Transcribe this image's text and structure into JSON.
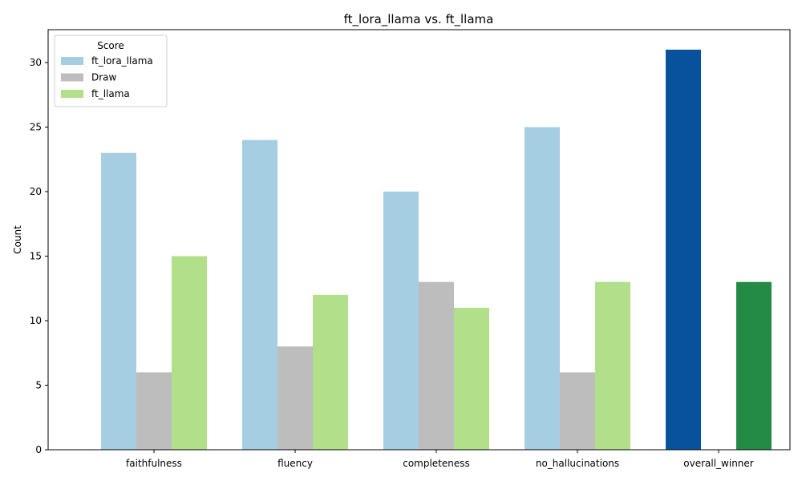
{
  "chart_data": {
    "type": "bar",
    "title": "ft_lora_llama vs. ft_llama",
    "xlabel": "",
    "ylabel": "Count",
    "ylim": [
      0,
      32.55
    ],
    "yticks": [
      0,
      5,
      10,
      15,
      20,
      25,
      30
    ],
    "grid": false,
    "categories": [
      "faithfulness",
      "fluency",
      "completeness",
      "no_hallucinations",
      "overall_winner"
    ],
    "legend": {
      "title": "Score",
      "placement": "top-left"
    },
    "series": [
      {
        "name": "ft_lora_llama",
        "color": "#a6cee3",
        "values": [
          23,
          24,
          20,
          25,
          31
        ],
        "overrides": {
          "4": "#08519c"
        }
      },
      {
        "name": "Draw",
        "color": "#bdbdbd",
        "values": [
          6,
          8,
          13,
          6,
          0
        ],
        "overrides": {}
      },
      {
        "name": "ft_llama",
        "color": "#b2df8a",
        "values": [
          15,
          12,
          11,
          13,
          13
        ],
        "overrides": {
          "4": "#238b45"
        }
      }
    ]
  }
}
